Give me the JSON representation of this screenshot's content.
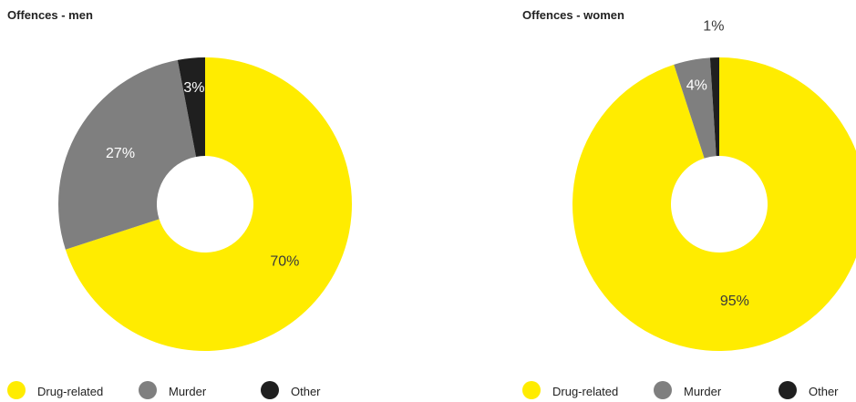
{
  "colors": {
    "drug": "#FFEC00",
    "murder": "#7F7F7F",
    "other": "#1F1F1F",
    "label_on_light": "#3A3A3A",
    "label_on_dark": "#FFFFFF"
  },
  "legend": [
    {
      "key": "drug",
      "label": "Drug-related"
    },
    {
      "key": "murder",
      "label": "Murder"
    },
    {
      "key": "other",
      "label": "Other"
    }
  ],
  "chart_data": [
    {
      "type": "pie",
      "title": "Offences - men",
      "categories": [
        "Drug-related",
        "Murder",
        "Other"
      ],
      "values": [
        70,
        27,
        3
      ],
      "labels": [
        "70%",
        "27%",
        "3%"
      ],
      "unit": "%"
    },
    {
      "type": "pie",
      "title": "Offences - women",
      "categories": [
        "Drug-related",
        "Murder",
        "Other"
      ],
      "values": [
        95,
        4,
        1
      ],
      "labels": [
        "95%",
        "4%",
        "1%"
      ],
      "unit": "%"
    }
  ]
}
